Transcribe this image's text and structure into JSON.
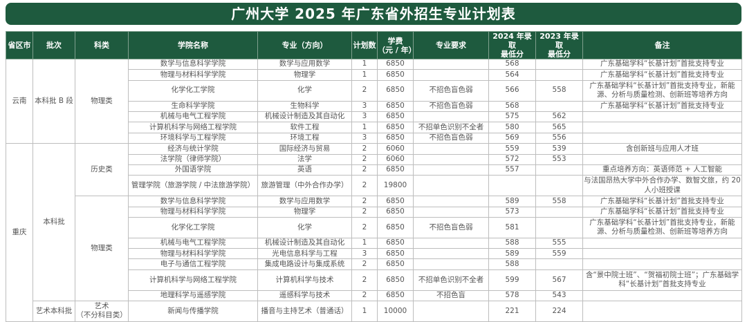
{
  "title": "广州大学 2025 年广东省外招生专业计划表",
  "colors": {
    "header_green": "#1e5a3e",
    "text": "#555555",
    "border": "#bdbdbd"
  },
  "columns": [
    "省区市",
    "批次",
    "科类",
    "学院名称",
    "专业（方向）",
    "计划数",
    "学费\n（元 / 年）",
    "专业要求",
    "2024 年录取\n最低分",
    "2023 年录取\n最低分",
    "备注"
  ],
  "groups": [
    {
      "province": "云南",
      "batches": [
        {
          "batch": "本科批 B 段",
          "categories": [
            {
              "category": "物理类",
              "rows": [
                {
                  "college": "数学与信息科学学院",
                  "major": "数学与应用数学",
                  "plan": "1",
                  "fee": "6850",
                  "requirement": "",
                  "min_2024": "568",
                  "min_2023": "",
                  "note": "广东基础学科“长基计划”首批支持专业"
                },
                {
                  "college": "物理与材料科学学院",
                  "major": "物理学",
                  "plan": "1",
                  "fee": "6850",
                  "requirement": "",
                  "min_2024": "564",
                  "min_2023": "",
                  "note": "广东基础学科“长基计划”首批支持专业"
                },
                {
                  "college": "化学化工学院",
                  "major": "化学",
                  "plan": "2",
                  "fee": "6850",
                  "requirement": "不招色盲色弱",
                  "min_2024": "566",
                  "min_2023": "558",
                  "note": "广东基础学科“长基计划”首批支持专业，新能源、分析与质量检测、创新班等培养方向"
                },
                {
                  "college": "生命科学学院",
                  "major": "生物科学",
                  "plan": "3",
                  "fee": "6850",
                  "requirement": "不招色盲色弱",
                  "min_2024": "568",
                  "min_2023": "",
                  "note": "广东基础学科“长基计划”首批支持专业"
                },
                {
                  "college": "机械与电气工程学院",
                  "major": "机械设计制造及其自动化",
                  "plan": "3",
                  "fee": "6850",
                  "requirement": "",
                  "min_2024": "575",
                  "min_2023": "562",
                  "note": ""
                },
                {
                  "college": "计算机科学与网络工程学院",
                  "major": "软件工程",
                  "plan": "1",
                  "fee": "6850",
                  "requirement": "不招单色识别不全者",
                  "min_2024": "580",
                  "min_2023": "565",
                  "note": ""
                },
                {
                  "college": "环境科学与工程学院",
                  "major": "环境工程",
                  "plan": "3",
                  "fee": "6850",
                  "requirement": "不招色盲色弱",
                  "min_2024": "569",
                  "min_2023": "556",
                  "note": ""
                }
              ]
            }
          ]
        }
      ]
    },
    {
      "province": "重庆",
      "batches": [
        {
          "batch": "本科批",
          "categories": [
            {
              "category": "历史类",
              "rows": [
                {
                  "college": "经济与统计学院",
                  "major": "国际经济与贸易",
                  "plan": "2",
                  "fee": "6060",
                  "requirement": "",
                  "min_2024": "559",
                  "min_2023": "539",
                  "note": "含创新班与应用人才班"
                },
                {
                  "college": "法学院（律师学院）",
                  "major": "法学",
                  "plan": "2",
                  "fee": "6060",
                  "requirement": "",
                  "min_2024": "572",
                  "min_2023": "553",
                  "note": ""
                },
                {
                  "college": "外国语学院",
                  "major": "英语",
                  "plan": "2",
                  "fee": "6850",
                  "requirement": "",
                  "min_2024": "557",
                  "min_2023": "",
                  "note": "重点培养方向：英语师范 + 人工智能"
                },
                {
                  "college": "管理学院（旅游学院 / 中法旅游学院）",
                  "major": "旅游管理（中外合作办学）",
                  "plan": "2",
                  "fee": "19800",
                  "requirement": "",
                  "min_2024": "",
                  "min_2023": "",
                  "note": "与法国昂热大学中外合作办学、数智文旅，约 20 人小班授课"
                }
              ]
            },
            {
              "category": "物理类",
              "rows": [
                {
                  "college": "数学与信息科学学院",
                  "major": "数学与应用数学",
                  "plan": "2",
                  "fee": "6850",
                  "requirement": "",
                  "min_2024": "589",
                  "min_2023": "558",
                  "note": "广东基础学科“长基计划”首批支持专业"
                },
                {
                  "college": "物理与材料科学学院",
                  "major": "物理学",
                  "plan": "2",
                  "fee": "6850",
                  "requirement": "",
                  "min_2024": "573",
                  "min_2023": "",
                  "note": "广东基础学科“长基计划”首批支持专业"
                },
                {
                  "college": "化学化工学院",
                  "major": "化学",
                  "plan": "2",
                  "fee": "6850",
                  "requirement": "不招色盲色弱",
                  "min_2024": "581",
                  "min_2023": "",
                  "note": "广东基础学科“长基计划”首批支持专业，新能源、分析与质量检测、创新班等培养方向"
                },
                {
                  "college": "机械与电气工程学院",
                  "major": "机械设计制造及其自动化",
                  "plan": "1",
                  "fee": "6850",
                  "requirement": "",
                  "min_2024": "588",
                  "min_2023": "555",
                  "note": ""
                },
                {
                  "college": "物理与材料科学学院",
                  "major": "光电信息科学与工程",
                  "plan": "3",
                  "fee": "6850",
                  "requirement": "",
                  "min_2024": "589",
                  "min_2023": "559",
                  "note": ""
                },
                {
                  "college": "电子与通信工程学院",
                  "major": "集成电路设计与集成系统",
                  "plan": "2",
                  "fee": "6850",
                  "requirement": "",
                  "min_2024": "588",
                  "min_2023": "",
                  "note": ""
                },
                {
                  "college": "计算机科学与网络工程学院",
                  "major": "计算机科学与技术",
                  "plan": "2",
                  "fee": "6850",
                  "requirement": "不招单色识别不全者",
                  "min_2024": "599",
                  "min_2023": "567",
                  "note": "含“景中院士班”、“贺福初院士班”；广东基础学科“长基计划”首批支持专业"
                },
                {
                  "college": "地理科学与遥感学院",
                  "major": "遥感科学与技术",
                  "plan": "2",
                  "fee": "6850",
                  "requirement": "不招色盲",
                  "min_2024": "578",
                  "min_2023": "543",
                  "note": ""
                }
              ]
            }
          ]
        },
        {
          "batch": "艺术本科批",
          "categories": [
            {
              "category": "艺术\n（不分科目类）",
              "rows": [
                {
                  "college": "新闻与传播学院",
                  "major": "播音与主持艺术（普通话）",
                  "plan": "1",
                  "fee": "10000",
                  "requirement": "",
                  "min_2024": "221",
                  "min_2023": "224",
                  "note": ""
                }
              ]
            }
          ]
        }
      ]
    }
  ]
}
